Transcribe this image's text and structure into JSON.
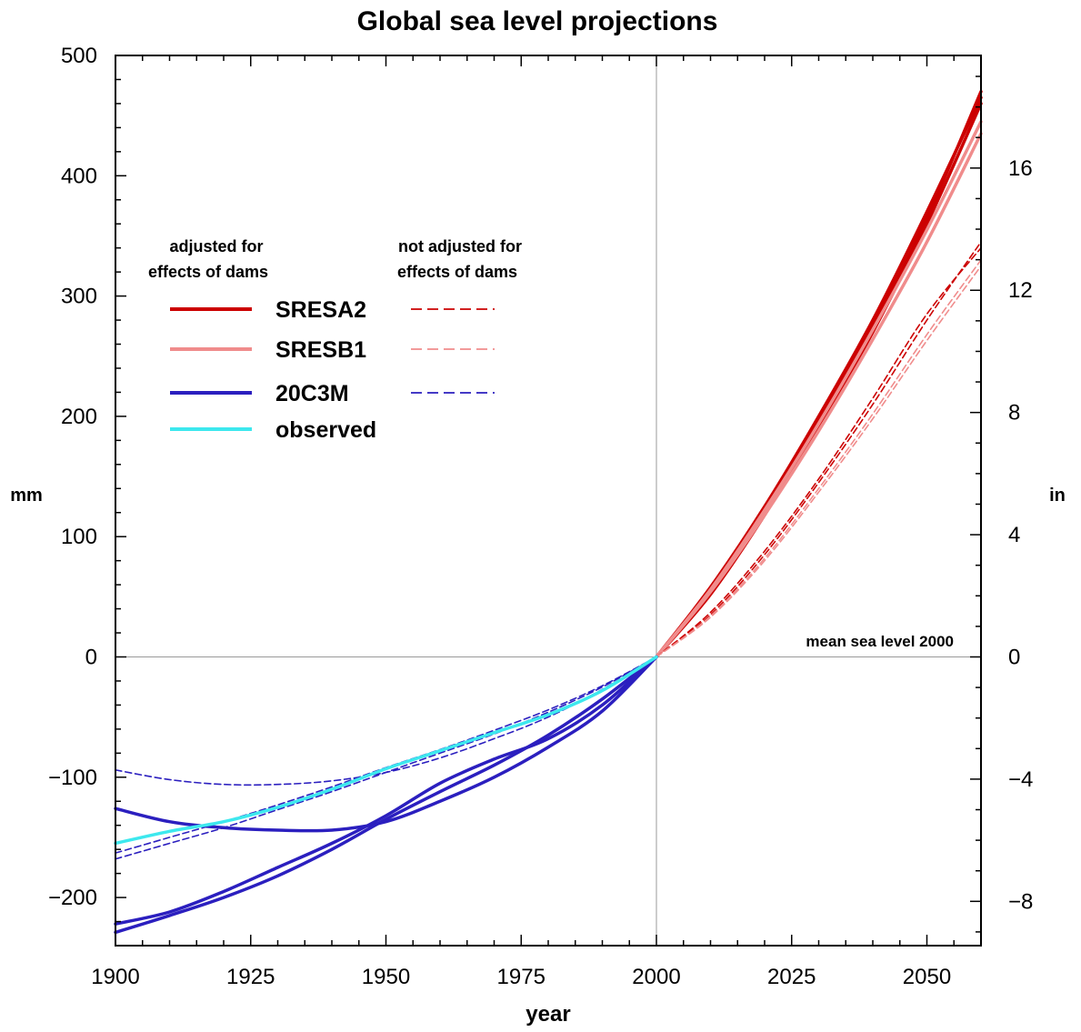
{
  "chart_data": {
    "type": "line",
    "title": "Global sea level projections",
    "xlabel": "year",
    "ylabel_left": "mm",
    "ylabel_right": "in",
    "xlim": [
      1900,
      2060
    ],
    "ylim": [
      -240,
      500
    ],
    "x_ticks": [
      1900,
      1925,
      1950,
      1975,
      2000,
      2025,
      2050
    ],
    "x_tick_labels": [
      "1900",
      "1925",
      "1950",
      "1975",
      "2000",
      "2025",
      "2050"
    ],
    "y_ticks_left": [
      -200,
      -100,
      0,
      100,
      200,
      300,
      400,
      500
    ],
    "y_tick_labels_left": [
      "−200",
      "−100",
      "0",
      "100",
      "200",
      "300",
      "400",
      "500"
    ],
    "y_ticks_right_in": [
      -8,
      -4,
      0,
      4,
      8,
      12,
      16
    ],
    "y_tick_labels_right": [
      "−8",
      "−4",
      "0",
      "4",
      "8",
      "12",
      "16"
    ],
    "reference_lines": {
      "x": 2000,
      "y": 0
    },
    "annotation": "mean sea level 2000",
    "legend": {
      "placement": "upper-left",
      "header_solid": [
        "adjusted for",
        "effects of dams"
      ],
      "header_dashed": [
        "not adjusted for",
        "effects of dams"
      ],
      "entries": [
        {
          "name": "SRESA2",
          "color": "#cc0000",
          "dashed": true
        },
        {
          "name": "SRESB1",
          "color": "#f08c8c",
          "dashed": true
        },
        {
          "name": "20C3M",
          "color": "#2b1fbf",
          "dashed": true
        },
        {
          "name": "observed",
          "color": "#3de8ee",
          "dashed": false
        }
      ]
    },
    "series": [
      {
        "style": "solid",
        "color": "#cc0000",
        "x": [
          2000,
          2010,
          2020,
          2030,
          2040,
          2050,
          2060
        ],
        "y": [
          0,
          55,
          120,
          195,
          275,
          365,
          470
        ]
      },
      {
        "style": "solid",
        "color": "#cc0000",
        "x": [
          2000,
          2010,
          2020,
          2030,
          2040,
          2050,
          2060
        ],
        "y": [
          0,
          58,
          125,
          200,
          280,
          370,
          465
        ]
      },
      {
        "style": "solid",
        "color": "#cc0000",
        "x": [
          2000,
          2010,
          2020,
          2030,
          2040,
          2050,
          2060
        ],
        "y": [
          0,
          52,
          118,
          192,
          270,
          360,
          460
        ]
      },
      {
        "style": "solid",
        "color": "#f08c8c",
        "x": [
          2000,
          2010,
          2020,
          2030,
          2040,
          2050,
          2060
        ],
        "y": [
          0,
          54,
          118,
          188,
          264,
          345,
          435
        ]
      },
      {
        "style": "solid",
        "color": "#f08c8c",
        "x": [
          2000,
          2010,
          2020,
          2030,
          2040,
          2050,
          2060
        ],
        "y": [
          0,
          56,
          122,
          194,
          272,
          355,
          445
        ]
      },
      {
        "style": "dashed",
        "color": "#cc0000",
        "x": [
          2000,
          2010,
          2020,
          2030,
          2040,
          2050,
          2060
        ],
        "y": [
          0,
          35,
          85,
          145,
          210,
          280,
          345
        ]
      },
      {
        "style": "dashed",
        "color": "#cc0000",
        "x": [
          2000,
          2010,
          2020,
          2030,
          2040,
          2050,
          2060
        ],
        "y": [
          0,
          37,
          88,
          148,
          215,
          285,
          340
        ]
      },
      {
        "style": "dashed",
        "color": "#f08c8c",
        "x": [
          2000,
          2010,
          2020,
          2030,
          2040,
          2050,
          2060
        ],
        "y": [
          0,
          33,
          80,
          137,
          198,
          263,
          325
        ]
      },
      {
        "style": "dashed",
        "color": "#f08c8c",
        "x": [
          2000,
          2010,
          2020,
          2030,
          2040,
          2050,
          2060
        ],
        "y": [
          0,
          34,
          82,
          140,
          202,
          268,
          330
        ]
      },
      {
        "style": "solid",
        "color": "#2b1fbf",
        "x": [
          1900,
          1910,
          1920,
          1930,
          1940,
          1950,
          1960,
          1970,
          1980,
          1990,
          2000
        ],
        "y": [
          -126,
          -137,
          -142,
          -144,
          -144,
          -137,
          -120,
          -100,
          -75,
          -45,
          0
        ]
      },
      {
        "style": "solid",
        "color": "#2b1fbf",
        "x": [
          1900,
          1910,
          1920,
          1930,
          1940,
          1950,
          1960,
          1970,
          1980,
          1990,
          2000
        ],
        "y": [
          -222,
          -212,
          -195,
          -175,
          -155,
          -132,
          -105,
          -85,
          -68,
          -40,
          0
        ]
      },
      {
        "style": "solid",
        "color": "#2b1fbf",
        "x": [
          1900,
          1910,
          1920,
          1930,
          1940,
          1950,
          1960,
          1970,
          1980,
          1990,
          2000
        ],
        "y": [
          -229,
          -215,
          -200,
          -182,
          -160,
          -135,
          -112,
          -90,
          -65,
          -35,
          0
        ]
      },
      {
        "style": "dashed",
        "color": "#2b1fbf",
        "x": [
          1900,
          1910,
          1920,
          1930,
          1940,
          1950,
          1960,
          1970,
          1980,
          1990,
          2000
        ],
        "y": [
          -94,
          -102,
          -106,
          -106,
          -103,
          -96,
          -84,
          -68,
          -50,
          -27,
          0
        ]
      },
      {
        "style": "dashed",
        "color": "#2b1fbf",
        "x": [
          1900,
          1910,
          1920,
          1930,
          1940,
          1950,
          1960,
          1970,
          1980,
          1990,
          2000
        ],
        "y": [
          -163,
          -150,
          -137,
          -123,
          -108,
          -92,
          -77,
          -61,
          -44,
          -24,
          0
        ]
      },
      {
        "style": "dashed",
        "color": "#2b1fbf",
        "x": [
          1900,
          1910,
          1920,
          1930,
          1940,
          1950,
          1960,
          1970,
          1980,
          1990,
          2000
        ],
        "y": [
          -168,
          -155,
          -142,
          -127,
          -112,
          -96,
          -80,
          -64,
          -46,
          -25,
          0
        ]
      },
      {
        "style": "solid",
        "color": "#3de8ee",
        "x": [
          1900,
          1910,
          1920,
          1930,
          1940,
          1950,
          1960,
          1970,
          1980,
          1990,
          2000
        ],
        "y": [
          -155,
          -145,
          -137,
          -125,
          -110,
          -93,
          -78,
          -63,
          -48,
          -28,
          0
        ]
      }
    ]
  }
}
